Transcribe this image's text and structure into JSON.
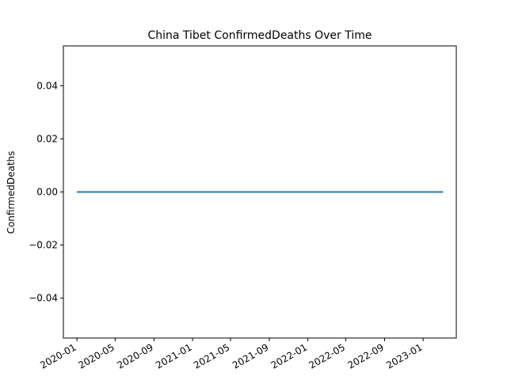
{
  "chart_data": {
    "type": "line",
    "title": "China Tibet ConfirmedDeaths Over Time",
    "xlabel": "",
    "ylabel": "ConfirmedDeaths",
    "x_range": [
      "2019-11-19",
      "2023-04-16"
    ],
    "ylim": [
      -0.055,
      0.055
    ],
    "x_ticks": [
      "2020-01",
      "2020-05",
      "2020-09",
      "2021-01",
      "2021-05",
      "2021-09",
      "2022-01",
      "2022-05",
      "2022-09",
      "2023-01"
    ],
    "y_ticks": [
      0.04,
      0.02,
      0.0,
      -0.02,
      -0.04
    ],
    "y_tick_labels": [
      "0.04",
      "0.02",
      "0.00",
      "−0.02",
      "−0.04"
    ],
    "grid": false,
    "series": [
      {
        "color": "#1f77b4",
        "x": [
          "2020-01-01",
          "2023-03-05"
        ],
        "y": [
          0,
          0
        ]
      }
    ]
  }
}
